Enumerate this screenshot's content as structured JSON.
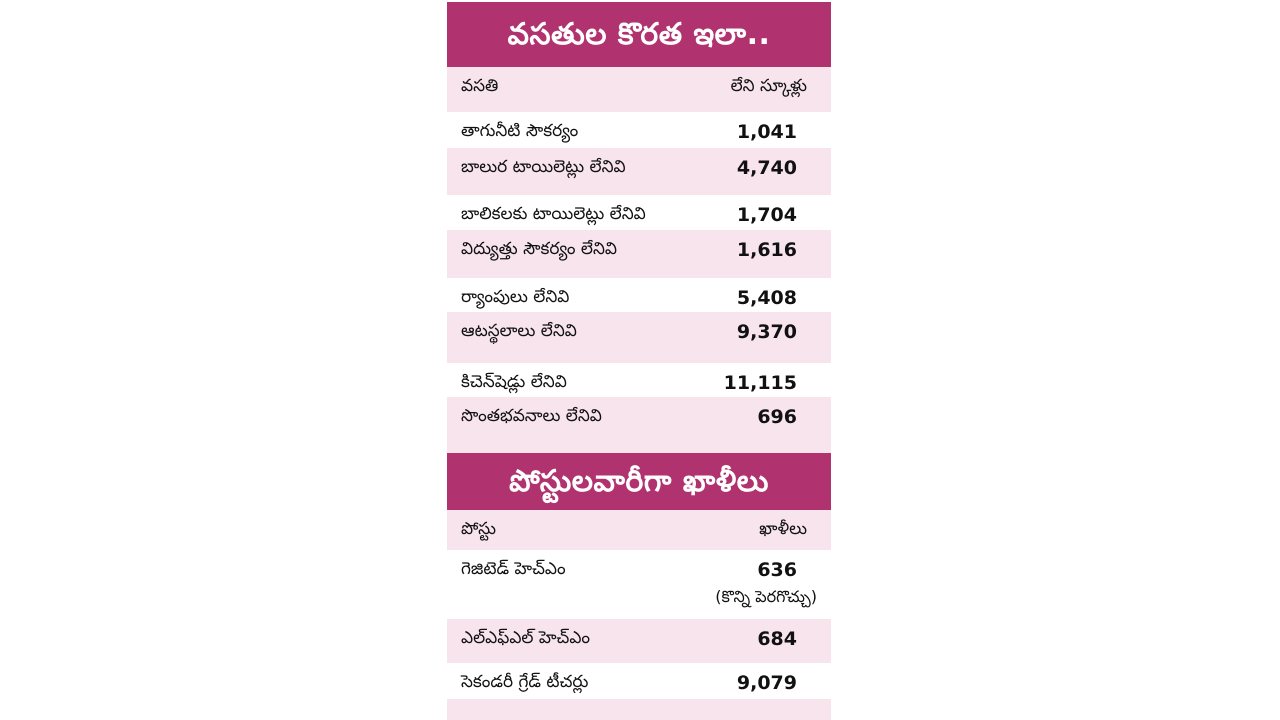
{
  "section1": {
    "title": "వసతుల కొరత ఇలా..",
    "header": {
      "label": "వసతి",
      "value": "లేని స్కూళ్లు"
    },
    "rows": [
      {
        "label": "తాగునీటి సౌకర్యం",
        "value": "1,041"
      },
      {
        "label": "బాలుర టాయిలెట్లు లేనివి",
        "value": "4,740"
      },
      {
        "label": "బాలికలకు టాయిలెట్లు లేనివి",
        "value": "1,704"
      },
      {
        "label": "విద్యుత్తు సౌకర్యం లేనివి",
        "value": "1,616"
      },
      {
        "label": "ర్యాంపులు లేనివి",
        "value": "5,408"
      },
      {
        "label": "ఆటస్థలాలు లేనివి",
        "value": "9,370"
      },
      {
        "label": "కిచెన్‌షెడ్లు లేనివి",
        "value": "11,115"
      },
      {
        "label": "సొంతభవనాలు లేనివి",
        "value": "696"
      }
    ]
  },
  "section2": {
    "title": "పోస్టులవారీగా ఖాళీలు",
    "header": {
      "label": "పోస్టు",
      "value": "ఖాళీలు"
    },
    "rows": [
      {
        "label": "గెజిటెడ్ హెచ్‌ఎం",
        "value": "636",
        "note": "(కొన్ని పెరగొచ్చు)"
      },
      {
        "label": "ఎల్‌ఎఫ్‌ఎల్ హెచ్‌ఎం",
        "value": "684"
      },
      {
        "label": "సెకండరీ గ్రేడ్ టీచర్లు",
        "value": "9,079"
      }
    ]
  },
  "colors": {
    "title_bg": "#b0336f",
    "row_pink": "#f7e4ec",
    "text": "#111111"
  }
}
